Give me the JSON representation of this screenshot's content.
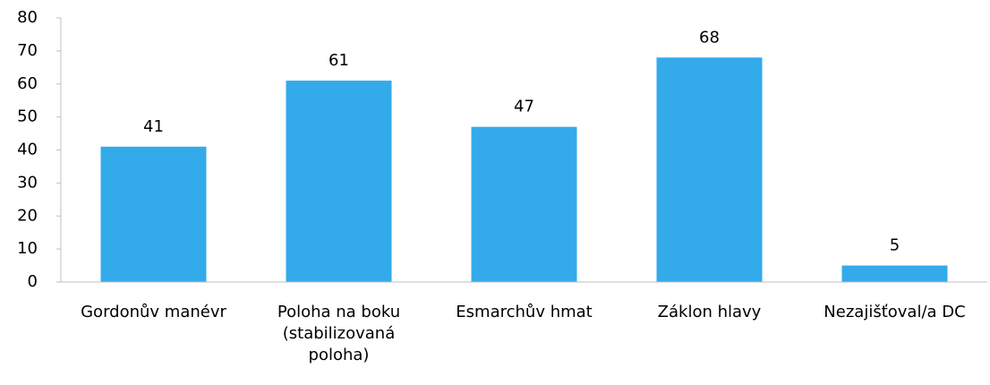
{
  "chart_data": {
    "type": "bar",
    "categories": [
      "Gordonův manévr",
      "Poloha na boku (stabilizovaná poloha)",
      "Esmarchův hmat",
      "Záklon hlavy",
      "Nezajišťoval/a DC"
    ],
    "values": [
      41,
      61,
      47,
      68,
      5
    ],
    "color": "#33abeb",
    "ylim": [
      0,
      80
    ],
    "yticks": [
      0,
      10,
      20,
      30,
      40,
      50,
      60,
      70,
      80
    ],
    "grid": false
  }
}
